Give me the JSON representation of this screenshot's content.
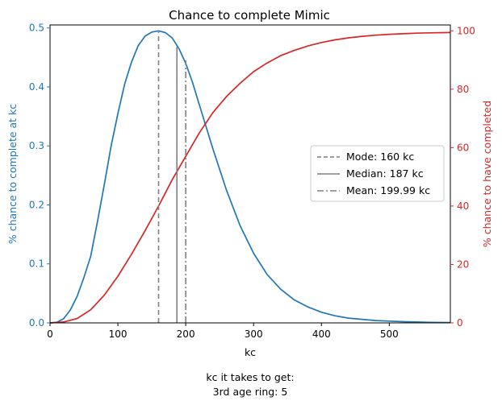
{
  "chart_data": {
    "type": "line",
    "title": "Chance to complete Mimic",
    "xlabel": "kc",
    "ylabel_left": "% chance to complete at kc",
    "ylabel_right": "% chance to have completed",
    "xlim": [
      0,
      590
    ],
    "ylim_left": [
      0,
      0.505
    ],
    "ylim_right": [
      0,
      102
    ],
    "x_ticks": [
      "0",
      "100",
      "200",
      "300",
      "400",
      "500"
    ],
    "x_tick_values": [
      0,
      100,
      200,
      300,
      400,
      500
    ],
    "y_left_ticks": [
      "0.0",
      "0.1",
      "0.2",
      "0.3",
      "0.4",
      "0.5"
    ],
    "y_left_tick_values": [
      0,
      0.1,
      0.2,
      0.3,
      0.4,
      0.5
    ],
    "y_right_ticks": [
      "0",
      "20",
      "40",
      "60",
      "80",
      "100"
    ],
    "y_right_tick_values": [
      0,
      20,
      40,
      60,
      80,
      100
    ],
    "grid": false,
    "legend_position": "center-right",
    "colors": {
      "left_axis": "#1f77b4",
      "right_axis": "#d62728",
      "vlines": "#808080"
    },
    "series": [
      {
        "axis": "left",
        "x": [
          0,
          10,
          20,
          30,
          40,
          50,
          60,
          70,
          80,
          90,
          100,
          110,
          120,
          130,
          140,
          150,
          160,
          170,
          180,
          190,
          200,
          210,
          220,
          240,
          260,
          280,
          300,
          320,
          340,
          360,
          380,
          400,
          420,
          440,
          460,
          480,
          500,
          520,
          540,
          560,
          590
        ],
        "y": [
          0,
          0.001,
          0.007,
          0.022,
          0.045,
          0.077,
          0.113,
          0.172,
          0.235,
          0.3,
          0.355,
          0.405,
          0.442,
          0.47,
          0.486,
          0.493,
          0.495,
          0.492,
          0.483,
          0.465,
          0.44,
          0.408,
          0.37,
          0.295,
          0.225,
          0.165,
          0.118,
          0.082,
          0.057,
          0.039,
          0.027,
          0.018,
          0.012,
          0.008,
          0.006,
          0.004,
          0.003,
          0.002,
          0.0015,
          0.001,
          0.0005
        ]
      },
      {
        "axis": "right",
        "x": [
          0,
          20,
          40,
          60,
          80,
          100,
          120,
          140,
          160,
          180,
          200,
          220,
          240,
          260,
          280,
          300,
          320,
          340,
          360,
          380,
          400,
          420,
          440,
          460,
          480,
          500,
          520,
          540,
          560,
          590
        ],
        "y": [
          0,
          0.3,
          1.5,
          4.5,
          9.5,
          16,
          23.5,
          31.5,
          40,
          49,
          57,
          65,
          72,
          77.5,
          82,
          86,
          89,
          91.5,
          93.3,
          94.8,
          96,
          96.9,
          97.6,
          98.1,
          98.5,
          98.8,
          99.0,
          99.2,
          99.3,
          99.4
        ]
      }
    ],
    "vertical_lines": [
      {
        "x": 160,
        "style": "dashed",
        "label": "Mode: 160 kc",
        "top_y_left": 0.495
      },
      {
        "x": 187,
        "style": "solid",
        "label": "Median: 187 kc",
        "top_y_left": 0.468
      },
      {
        "x": 199.99,
        "style": "dashdot",
        "label": "Mean: 199.99 kc",
        "top_y_left": 0.445
      }
    ],
    "footer": {
      "heading": "kc it takes to get:",
      "line": "3rd age ring: 5"
    }
  }
}
